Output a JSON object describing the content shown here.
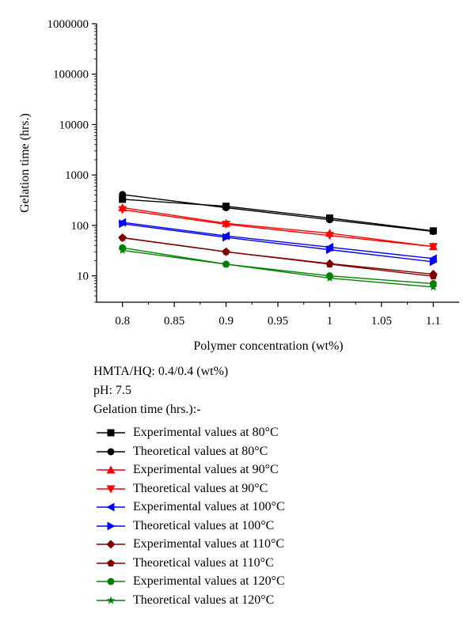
{
  "chart_data": {
    "type": "line",
    "xlabel": "Polymer concentration (wt%)",
    "ylabel": "Gelation time (hrs.)",
    "xlim": [
      0.775,
      1.125
    ],
    "ylim": [
      3,
      1000000
    ],
    "y_scale": "log",
    "x_ticks": [
      "0.8",
      "0.85",
      "0.9",
      "0.95",
      "1",
      "1.05",
      "1.1"
    ],
    "x_tick_values": [
      0.8,
      0.85,
      0.9,
      0.95,
      1.0,
      1.05,
      1.1
    ],
    "y_ticks": [
      "10",
      "100",
      "1000",
      "10000",
      "100000",
      "1000000"
    ],
    "y_tick_values": [
      10,
      100,
      1000,
      10000,
      100000,
      1000000
    ],
    "grid": false,
    "legend_position": "below",
    "x": [
      0.8,
      0.9,
      1.0,
      1.1
    ],
    "series": [
      {
        "name": "Experimental values at 80°C",
        "color": "#000000",
        "marker": "square",
        "values": [
          330,
          240,
          140,
          78
        ]
      },
      {
        "name": "Theoretical values at 80°C",
        "color": "#000000",
        "marker": "circle",
        "values": [
          410,
          225,
          130,
          76
        ]
      },
      {
        "name": "Experimental values at 90°C",
        "color": "#ff0000",
        "marker": "triangle-up",
        "values": [
          225,
          110,
          70,
          38
        ]
      },
      {
        "name": "Theoretical values at 90°C",
        "color": "#ff0000",
        "marker": "triangle-down",
        "values": [
          205,
          105,
          63,
          38
        ]
      },
      {
        "name": "Experimental values at 100°C",
        "color": "#0000ff",
        "marker": "triangle-left",
        "values": [
          115,
          62,
          37,
          22
        ]
      },
      {
        "name": "Theoretical values at 100°C",
        "color": "#0000ff",
        "marker": "triangle-right",
        "values": [
          108,
          58,
          33,
          19
        ]
      },
      {
        "name": "Experimental values at 110°C",
        "color": "#800000",
        "marker": "diamond",
        "values": [
          57,
          30,
          17.5,
          10.8
        ]
      },
      {
        "name": "Theoretical values at 110°C",
        "color": "#800000",
        "marker": "pentagon",
        "values": [
          57,
          30,
          17,
          9.8
        ]
      },
      {
        "name": "Experimental values at 120°C",
        "color": "#008000",
        "marker": "circle",
        "values": [
          36,
          17,
          10,
          7
        ]
      },
      {
        "name": "Theoretical values at 120°C",
        "color": "#008000",
        "marker": "star",
        "values": [
          32,
          17,
          9,
          6
        ]
      }
    ]
  },
  "notes": {
    "line1": "HMTA/HQ: 0.4/0.4 (wt%)",
    "line2": "pH: 7.5",
    "line3": "Gelation time (hrs.):-"
  }
}
